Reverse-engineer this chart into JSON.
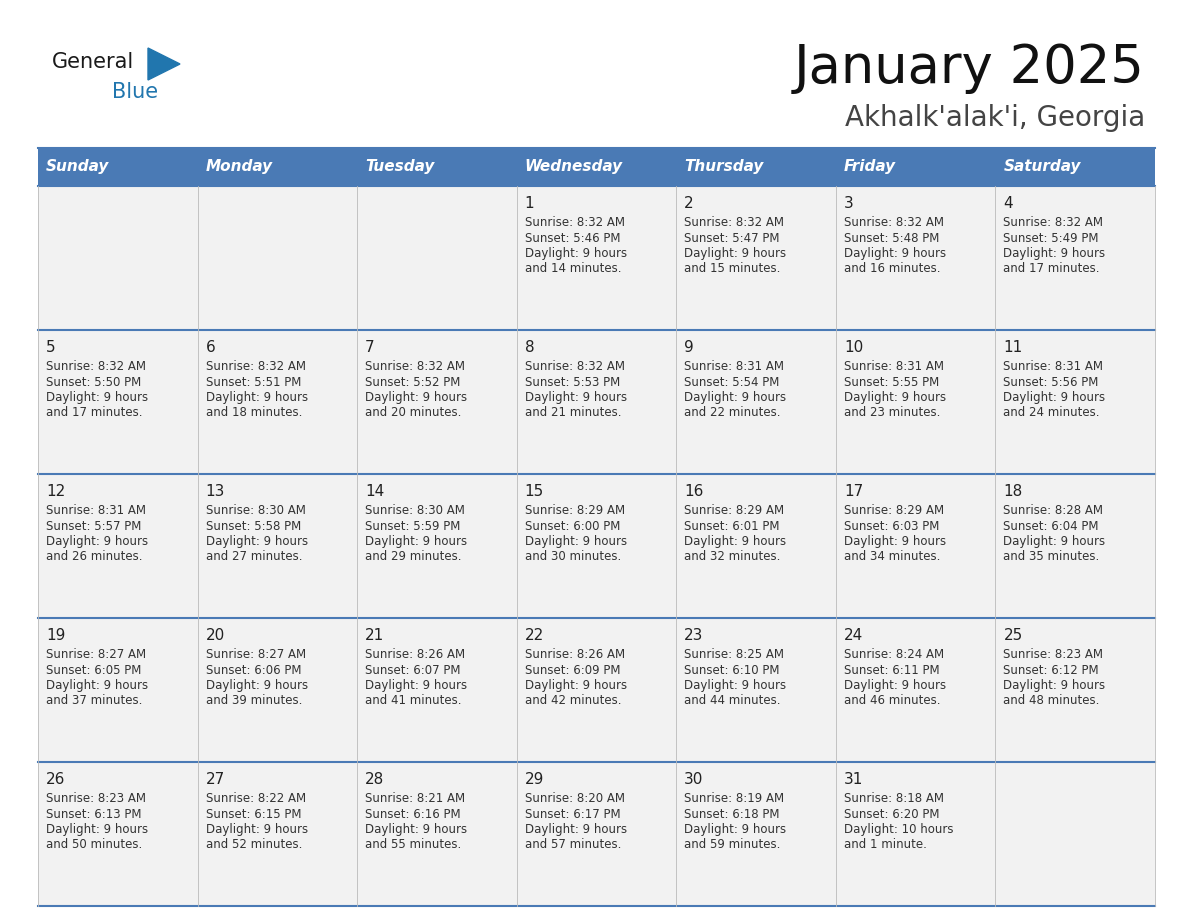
{
  "title": "January 2025",
  "subtitle": "Akhalk'alak'i, Georgia",
  "days_of_week": [
    "Sunday",
    "Monday",
    "Tuesday",
    "Wednesday",
    "Thursday",
    "Friday",
    "Saturday"
  ],
  "header_bg_color": "#4a7ab5",
  "header_text_color": "#ffffff",
  "cell_bg_color": "#f2f2f2",
  "border_color": "#4a7ab5",
  "text_color": "#333333",
  "logo_blue_color": "#2176ae",
  "logo_dark_color": "#1a1a1a",
  "weeks": [
    [
      {
        "day": null,
        "sunrise": null,
        "sunset": null,
        "daylight": null
      },
      {
        "day": null,
        "sunrise": null,
        "sunset": null,
        "daylight": null
      },
      {
        "day": null,
        "sunrise": null,
        "sunset": null,
        "daylight": null
      },
      {
        "day": 1,
        "sunrise": "8:32 AM",
        "sunset": "5:46 PM",
        "daylight": "9 hours and 14 minutes."
      },
      {
        "day": 2,
        "sunrise": "8:32 AM",
        "sunset": "5:47 PM",
        "daylight": "9 hours and 15 minutes."
      },
      {
        "day": 3,
        "sunrise": "8:32 AM",
        "sunset": "5:48 PM",
        "daylight": "9 hours and 16 minutes."
      },
      {
        "day": 4,
        "sunrise": "8:32 AM",
        "sunset": "5:49 PM",
        "daylight": "9 hours and 17 minutes."
      }
    ],
    [
      {
        "day": 5,
        "sunrise": "8:32 AM",
        "sunset": "5:50 PM",
        "daylight": "9 hours and 17 minutes."
      },
      {
        "day": 6,
        "sunrise": "8:32 AM",
        "sunset": "5:51 PM",
        "daylight": "9 hours and 18 minutes."
      },
      {
        "day": 7,
        "sunrise": "8:32 AM",
        "sunset": "5:52 PM",
        "daylight": "9 hours and 20 minutes."
      },
      {
        "day": 8,
        "sunrise": "8:32 AM",
        "sunset": "5:53 PM",
        "daylight": "9 hours and 21 minutes."
      },
      {
        "day": 9,
        "sunrise": "8:31 AM",
        "sunset": "5:54 PM",
        "daylight": "9 hours and 22 minutes."
      },
      {
        "day": 10,
        "sunrise": "8:31 AM",
        "sunset": "5:55 PM",
        "daylight": "9 hours and 23 minutes."
      },
      {
        "day": 11,
        "sunrise": "8:31 AM",
        "sunset": "5:56 PM",
        "daylight": "9 hours and 24 minutes."
      }
    ],
    [
      {
        "day": 12,
        "sunrise": "8:31 AM",
        "sunset": "5:57 PM",
        "daylight": "9 hours and 26 minutes."
      },
      {
        "day": 13,
        "sunrise": "8:30 AM",
        "sunset": "5:58 PM",
        "daylight": "9 hours and 27 minutes."
      },
      {
        "day": 14,
        "sunrise": "8:30 AM",
        "sunset": "5:59 PM",
        "daylight": "9 hours and 29 minutes."
      },
      {
        "day": 15,
        "sunrise": "8:29 AM",
        "sunset": "6:00 PM",
        "daylight": "9 hours and 30 minutes."
      },
      {
        "day": 16,
        "sunrise": "8:29 AM",
        "sunset": "6:01 PM",
        "daylight": "9 hours and 32 minutes."
      },
      {
        "day": 17,
        "sunrise": "8:29 AM",
        "sunset": "6:03 PM",
        "daylight": "9 hours and 34 minutes."
      },
      {
        "day": 18,
        "sunrise": "8:28 AM",
        "sunset": "6:04 PM",
        "daylight": "9 hours and 35 minutes."
      }
    ],
    [
      {
        "day": 19,
        "sunrise": "8:27 AM",
        "sunset": "6:05 PM",
        "daylight": "9 hours and 37 minutes."
      },
      {
        "day": 20,
        "sunrise": "8:27 AM",
        "sunset": "6:06 PM",
        "daylight": "9 hours and 39 minutes."
      },
      {
        "day": 21,
        "sunrise": "8:26 AM",
        "sunset": "6:07 PM",
        "daylight": "9 hours and 41 minutes."
      },
      {
        "day": 22,
        "sunrise": "8:26 AM",
        "sunset": "6:09 PM",
        "daylight": "9 hours and 42 minutes."
      },
      {
        "day": 23,
        "sunrise": "8:25 AM",
        "sunset": "6:10 PM",
        "daylight": "9 hours and 44 minutes."
      },
      {
        "day": 24,
        "sunrise": "8:24 AM",
        "sunset": "6:11 PM",
        "daylight": "9 hours and 46 minutes."
      },
      {
        "day": 25,
        "sunrise": "8:23 AM",
        "sunset": "6:12 PM",
        "daylight": "9 hours and 48 minutes."
      }
    ],
    [
      {
        "day": 26,
        "sunrise": "8:23 AM",
        "sunset": "6:13 PM",
        "daylight": "9 hours and 50 minutes."
      },
      {
        "day": 27,
        "sunrise": "8:22 AM",
        "sunset": "6:15 PM",
        "daylight": "9 hours and 52 minutes."
      },
      {
        "day": 28,
        "sunrise": "8:21 AM",
        "sunset": "6:16 PM",
        "daylight": "9 hours and 55 minutes."
      },
      {
        "day": 29,
        "sunrise": "8:20 AM",
        "sunset": "6:17 PM",
        "daylight": "9 hours and 57 minutes."
      },
      {
        "day": 30,
        "sunrise": "8:19 AM",
        "sunset": "6:18 PM",
        "daylight": "9 hours and 59 minutes."
      },
      {
        "day": 31,
        "sunrise": "8:18 AM",
        "sunset": "6:20 PM",
        "daylight": "10 hours and 1 minute."
      },
      {
        "day": null,
        "sunrise": null,
        "sunset": null,
        "daylight": null
      }
    ]
  ]
}
